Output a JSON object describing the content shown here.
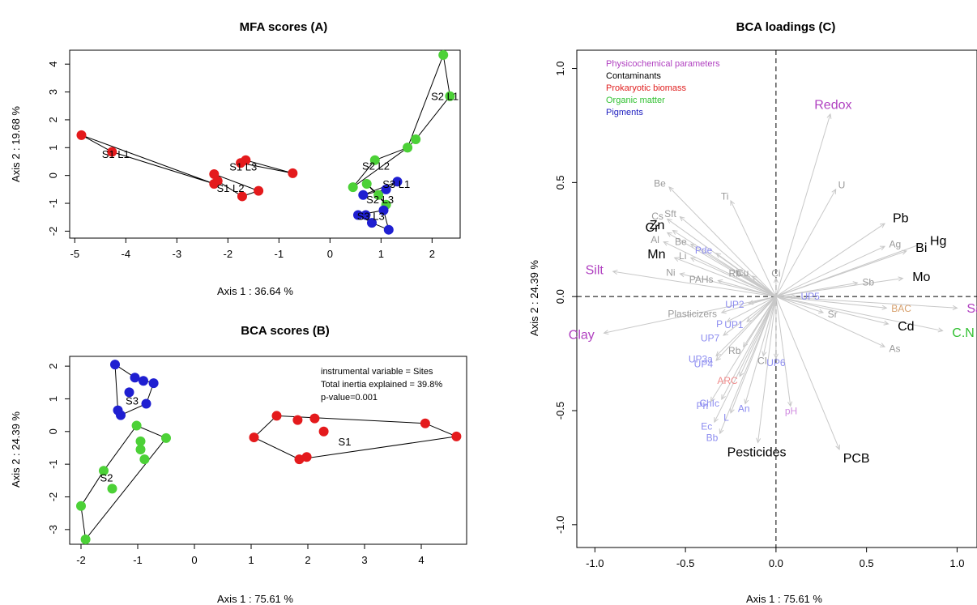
{
  "colors": {
    "site1": "#e41a1c",
    "site2": "#4cd137",
    "site3": "#1f1fd1",
    "physicochemical": "#b040c0",
    "contaminants": "#000000",
    "prokaryotic": "#e02020",
    "organic_matter": "#30c030",
    "pigments": "#2020c0",
    "faded_grey": "#9a9a9a",
    "faded_blue": "#8c8cf0",
    "faded_red": "#f08c8c",
    "faded_purple": "#d08ce0",
    "faded_orange": "#d8a06c",
    "arrow": "#c8c8c8"
  },
  "chart_data": [
    {
      "id": "A",
      "type": "scatter",
      "title": "MFA scores  (A)",
      "xlabel": "Axis 1 :  36.64 %",
      "ylabel": "Axis 2 :  19.68 %",
      "xlim": [
        -5.1,
        2.55
      ],
      "ylim": [
        -2.25,
        4.5
      ],
      "xticks": [
        -5,
        -4,
        -3,
        -2,
        -1,
        0,
        1,
        2
      ],
      "yticks": [
        -2,
        -1,
        0,
        1,
        2,
        3,
        4
      ],
      "groups": [
        {
          "label": "S1 L1",
          "color_key": "site1",
          "label_pos": [
            -4.2,
            0.78
          ],
          "points": [
            [
              -4.87,
              1.45
            ],
            [
              -4.27,
              0.85
            ],
            [
              -2.27,
              -0.3
            ]
          ]
        },
        {
          "label": "S1 L2",
          "color_key": "site1",
          "label_pos": [
            -1.95,
            -0.45
          ],
          "points": [
            [
              -2.27,
              0.05
            ],
            [
              -2.2,
              -0.2
            ],
            [
              -1.72,
              -0.75
            ],
            [
              -1.4,
              -0.55
            ]
          ]
        },
        {
          "label": "S1 L3",
          "color_key": "site1",
          "label_pos": [
            -1.7,
            0.33
          ],
          "points": [
            [
              -1.75,
              0.45
            ],
            [
              -1.65,
              0.55
            ],
            [
              -0.73,
              0.08
            ]
          ]
        },
        {
          "label": "S2 L1",
          "color_key": "site2",
          "label_pos": [
            2.25,
            2.85
          ],
          "points": [
            [
              2.22,
              4.33
            ],
            [
              2.35,
              2.85
            ],
            [
              1.68,
              1.3
            ],
            [
              1.52,
              1.0
            ]
          ]
        },
        {
          "label": "S2 L2",
          "color_key": "site2",
          "label_pos": [
            0.9,
            0.35
          ],
          "points": [
            [
              0.88,
              0.55
            ],
            [
              1.52,
              1.0
            ],
            [
              0.45,
              -0.42
            ]
          ]
        },
        {
          "label": "S2 L3",
          "color_key": "site2",
          "label_pos": [
            0.98,
            -0.85
          ],
          "points": [
            [
              0.72,
              -0.3
            ],
            [
              0.95,
              -0.7
            ],
            [
              1.1,
              -1.05
            ]
          ]
        },
        {
          "label": "S3 L1",
          "color_key": "site3",
          "label_pos": [
            1.3,
            -0.3
          ],
          "points": [
            [
              1.32,
              -0.22
            ],
            [
              1.1,
              -0.5
            ],
            [
              0.65,
              -0.7
            ]
          ]
        },
        {
          "label": "S3 L3",
          "color_key": "site3",
          "label_pos": [
            0.8,
            -1.45
          ],
          "points": [
            [
              0.55,
              -1.42
            ],
            [
              0.7,
              -1.42
            ],
            [
              1.05,
              -1.25
            ],
            [
              0.82,
              -1.7
            ],
            [
              1.15,
              -1.95
            ]
          ]
        }
      ]
    },
    {
      "id": "B",
      "type": "scatter",
      "title": "BCA scores  (B)",
      "xlabel": "Axis 1 :  75.61 %",
      "ylabel": "Axis 2 :  24.39 %",
      "xlim": [
        -2.2,
        4.8
      ],
      "ylim": [
        -3.45,
        2.3
      ],
      "xticks": [
        -2,
        -1,
        0,
        1,
        2,
        3,
        4
      ],
      "yticks": [
        -3,
        -2,
        -1,
        0,
        1,
        2
      ],
      "annotation": [
        "instrumental variable = Sites",
        "Total inertia explained = 39.8%",
        "p-value=0.001"
      ],
      "groups": [
        {
          "label": "S1",
          "color_key": "site1",
          "label_pos": [
            2.65,
            -0.3
          ],
          "points": [
            [
              1.05,
              -0.18
            ],
            [
              1.45,
              0.48
            ],
            [
              1.82,
              0.35
            ],
            [
              2.12,
              0.4
            ],
            [
              2.28,
              0.0
            ],
            [
              1.85,
              -0.85
            ],
            [
              1.98,
              -0.78
            ],
            [
              4.07,
              0.25
            ],
            [
              4.62,
              -0.15
            ]
          ],
          "hull": [
            [
              1.05,
              -0.18
            ],
            [
              1.45,
              0.48
            ],
            [
              4.07,
              0.25
            ],
            [
              4.62,
              -0.15
            ],
            [
              1.85,
              -0.85
            ]
          ]
        },
        {
          "label": "S2",
          "color_key": "site2",
          "label_pos": [
            -1.55,
            -1.4
          ],
          "points": [
            [
              -1.02,
              0.18
            ],
            [
              -0.5,
              -0.2
            ],
            [
              -0.95,
              -0.3
            ],
            [
              -0.95,
              -0.55
            ],
            [
              -0.88,
              -0.85
            ],
            [
              -1.6,
              -1.2
            ],
            [
              -1.45,
              -1.75
            ],
            [
              -2.0,
              -2.28
            ],
            [
              -1.92,
              -3.3
            ]
          ],
          "hull": [
            [
              -1.02,
              0.18
            ],
            [
              -0.5,
              -0.2
            ],
            [
              -1.92,
              -3.3
            ],
            [
              -2.0,
              -2.28
            ],
            [
              -1.6,
              -1.2
            ]
          ]
        },
        {
          "label": "S3",
          "color_key": "site3",
          "label_pos": [
            -1.1,
            0.95
          ],
          "points": [
            [
              -1.4,
              2.05
            ],
            [
              -1.05,
              1.65
            ],
            [
              -0.9,
              1.55
            ],
            [
              -0.72,
              1.48
            ],
            [
              -1.15,
              1.2
            ],
            [
              -0.85,
              0.85
            ],
            [
              -1.35,
              0.65
            ],
            [
              -1.3,
              0.5
            ]
          ],
          "hull": [
            [
              -1.4,
              2.05
            ],
            [
              -1.05,
              1.65
            ],
            [
              -0.72,
              1.48
            ],
            [
              -0.85,
              0.85
            ],
            [
              -1.3,
              0.5
            ],
            [
              -1.35,
              0.65
            ]
          ]
        }
      ]
    },
    {
      "id": "C",
      "type": "scatter",
      "title": "BCA loadings (C)",
      "xlabel": "Axis 1 :  75.61 %",
      "ylabel": "Axis 2 :  24.39 %",
      "xlim": [
        -1.1,
        1.11
      ],
      "ylim": [
        -1.1,
        1.08
      ],
      "xticks": [
        -1.0,
        -0.5,
        0.0,
        0.5,
        1.0
      ],
      "xtick_labels": [
        "-1.0",
        "-0.5",
        "0.0",
        "0.5",
        "1.0"
      ],
      "yticks": [
        -1.0,
        -0.5,
        0.0,
        0.5,
        1.0
      ],
      "ytick_labels": [
        "-1.0",
        "-0.5",
        "0.0",
        "0.5",
        "1.0"
      ],
      "legend": [
        {
          "label": "Physicochemical parameters",
          "color_key": "physicochemical"
        },
        {
          "label": "Contaminants",
          "color_key": "contaminants"
        },
        {
          "label": "Prokaryotic biomass",
          "color_key": "prokaryotic"
        },
        {
          "label": "Organic matter",
          "color_key": "organic_matter"
        },
        {
          "label": "Pigments",
          "color_key": "pigments"
        }
      ],
      "variables": [
        {
          "label": "Redox",
          "x": 0.3,
          "y": 0.8,
          "color_key": "physicochemical",
          "big": true
        },
        {
          "label": "Silt",
          "x": -0.9,
          "y": 0.11,
          "color_key": "physicochemical",
          "big": true
        },
        {
          "label": "Clay",
          "x": -0.95,
          "y": -0.16,
          "color_key": "physicochemical",
          "big": true
        },
        {
          "label": "Sand",
          "x": 1.0,
          "y": -0.05,
          "color_key": "physicochemical",
          "big": true
        },
        {
          "label": "C.N",
          "x": 0.92,
          "y": -0.15,
          "color_key": "organic_matter",
          "big": true
        },
        {
          "label": "Pb",
          "x": 0.6,
          "y": 0.32,
          "color_key": "contaminants",
          "big": true
        },
        {
          "label": "Hg",
          "x": 0.8,
          "y": 0.23,
          "color_key": "contaminants",
          "big": true
        },
        {
          "label": "Bi",
          "x": 0.72,
          "y": 0.2,
          "color_key": "contaminants",
          "big": true
        },
        {
          "label": "Mo",
          "x": 0.7,
          "y": 0.08,
          "color_key": "contaminants",
          "big": true
        },
        {
          "label": "Cd",
          "x": 0.62,
          "y": -0.12,
          "color_key": "contaminants",
          "big": true
        },
        {
          "label": "Cr",
          "x": -0.6,
          "y": 0.28,
          "color_key": "contaminants",
          "big": true
        },
        {
          "label": "Zn",
          "x": -0.57,
          "y": 0.29,
          "color_key": "contaminants",
          "big": true
        },
        {
          "label": "Mn",
          "x": -0.56,
          "y": 0.17,
          "color_key": "contaminants",
          "big": true
        },
        {
          "label": "Pesticides",
          "x": -0.1,
          "y": -0.64,
          "color_key": "contaminants",
          "big": true
        },
        {
          "label": "PCB",
          "x": 0.35,
          "y": -0.67,
          "color_key": "contaminants",
          "big": true
        },
        {
          "label": "U",
          "x": 0.33,
          "y": 0.47,
          "color_key": "faded_grey"
        },
        {
          "label": "Ag",
          "x": 0.6,
          "y": 0.22,
          "color_key": "faded_grey"
        },
        {
          "label": "Sb",
          "x": 0.45,
          "y": 0.06,
          "color_key": "faded_grey"
        },
        {
          "label": "Sr",
          "x": 0.26,
          "y": -0.07,
          "color_key": "faded_grey"
        },
        {
          "label": "As",
          "x": 0.6,
          "y": -0.22,
          "color_key": "faded_grey"
        },
        {
          "label": "Be",
          "x": -0.59,
          "y": 0.48,
          "color_key": "faded_grey"
        },
        {
          "label": "Ti",
          "x": -0.25,
          "y": 0.42,
          "color_key": "faded_grey"
        },
        {
          "label": "Sft",
          "x": -0.53,
          "y": 0.35,
          "color_key": "faded_grey"
        },
        {
          "label": "Cs",
          "x": -0.6,
          "y": 0.34,
          "color_key": "faded_grey"
        },
        {
          "label": "Al",
          "x": -0.62,
          "y": 0.24,
          "color_key": "faded_grey"
        },
        {
          "label": "Be",
          "x": -0.47,
          "y": 0.23,
          "color_key": "faded_grey"
        },
        {
          "label": "Li",
          "x": -0.47,
          "y": 0.17,
          "color_key": "faded_grey"
        },
        {
          "label": "Ni",
          "x": -0.53,
          "y": 0.1,
          "color_key": "faded_grey"
        },
        {
          "label": "PAHs",
          "x": -0.32,
          "y": 0.07,
          "color_key": "faded_grey"
        },
        {
          "label": "Rb",
          "x": -0.17,
          "y": 0.09,
          "color_key": "faded_grey"
        },
        {
          "label": "Cu",
          "x": -0.13,
          "y": 0.09,
          "color_key": "faded_grey"
        },
        {
          "label": "Ci",
          "x": 0.0,
          "y": 0.08,
          "color_key": "faded_grey"
        },
        {
          "label": "Plasticizers",
          "x": -0.3,
          "y": -0.07,
          "color_key": "faded_grey"
        },
        {
          "label": "Rb",
          "x": -0.18,
          "y": -0.22,
          "color_key": "faded_grey"
        },
        {
          "label": "CI",
          "x": -0.07,
          "y": -0.26,
          "color_key": "faded_grey"
        },
        {
          "label": "Pde",
          "x": -0.33,
          "y": 0.19,
          "color_key": "faded_blue"
        },
        {
          "label": "UP2",
          "x": -0.15,
          "y": -0.03,
          "color_key": "faded_blue"
        },
        {
          "label": "UP5",
          "x": 0.11,
          "y": 0.0,
          "color_key": "faded_blue"
        },
        {
          "label": "P",
          "x": -0.27,
          "y": -0.11,
          "color_key": "faded_blue"
        },
        {
          "label": "UP1",
          "x": -0.16,
          "y": -0.11,
          "color_key": "faded_blue"
        },
        {
          "label": "UP7",
          "x": -0.29,
          "y": -0.17,
          "color_key": "faded_blue"
        },
        {
          "label": "UP3a",
          "x": -0.33,
          "y": -0.26,
          "color_key": "faded_blue"
        },
        {
          "label": "UP4",
          "x": -0.33,
          "y": -0.28,
          "color_key": "faded_blue"
        },
        {
          "label": "UP6",
          "x": 0.0,
          "y": -0.27,
          "color_key": "faded_blue"
        },
        {
          "label": "Ph",
          "x": -0.36,
          "y": -0.46,
          "color_key": "faded_blue"
        },
        {
          "label": "ChIc",
          "x": -0.3,
          "y": -0.45,
          "color_key": "faded_blue"
        },
        {
          "label": "An",
          "x": -0.17,
          "y": -0.47,
          "color_key": "faded_blue"
        },
        {
          "label": "L",
          "x": -0.25,
          "y": -0.51,
          "color_key": "faded_blue"
        },
        {
          "label": "Ec",
          "x": -0.34,
          "y": -0.55,
          "color_key": "faded_blue"
        },
        {
          "label": "Bb",
          "x": -0.31,
          "y": -0.6,
          "color_key": "faded_blue"
        },
        {
          "label": "ARC",
          "x": -0.2,
          "y": -0.35,
          "color_key": "faded_red"
        },
        {
          "label": "pH",
          "x": 0.08,
          "y": -0.48,
          "color_key": "faded_purple"
        },
        {
          "label": "BAC",
          "x": 0.61,
          "y": -0.05,
          "color_key": "faded_orange"
        }
      ]
    }
  ]
}
